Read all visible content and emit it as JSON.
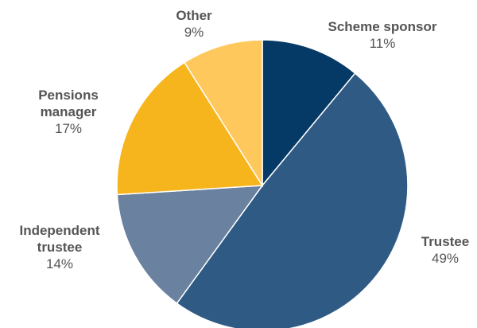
{
  "chart_data": {
    "type": "pie",
    "title": "",
    "start_angle_deg": 0,
    "direction": "clockwise",
    "slices": [
      {
        "key": "scheme",
        "name_lines": [
          "Scheme sponsor"
        ],
        "value": 11,
        "display": "11%",
        "color": "#053a66"
      },
      {
        "key": "trustee",
        "name_lines": [
          "Trustee"
        ],
        "value": 49,
        "display": "49%",
        "color": "#2e5a84"
      },
      {
        "key": "independent",
        "name_lines": [
          "Independent",
          "trustee"
        ],
        "value": 14,
        "display": "14%",
        "color": "#6a819f"
      },
      {
        "key": "pensions",
        "name_lines": [
          "Pensions",
          "manager"
        ],
        "value": 17,
        "display": "17%",
        "color": "#f6b51d"
      },
      {
        "key": "other",
        "name_lines": [
          "Other"
        ],
        "value": 9,
        "display": "9%",
        "color": "#fec85d"
      }
    ]
  }
}
